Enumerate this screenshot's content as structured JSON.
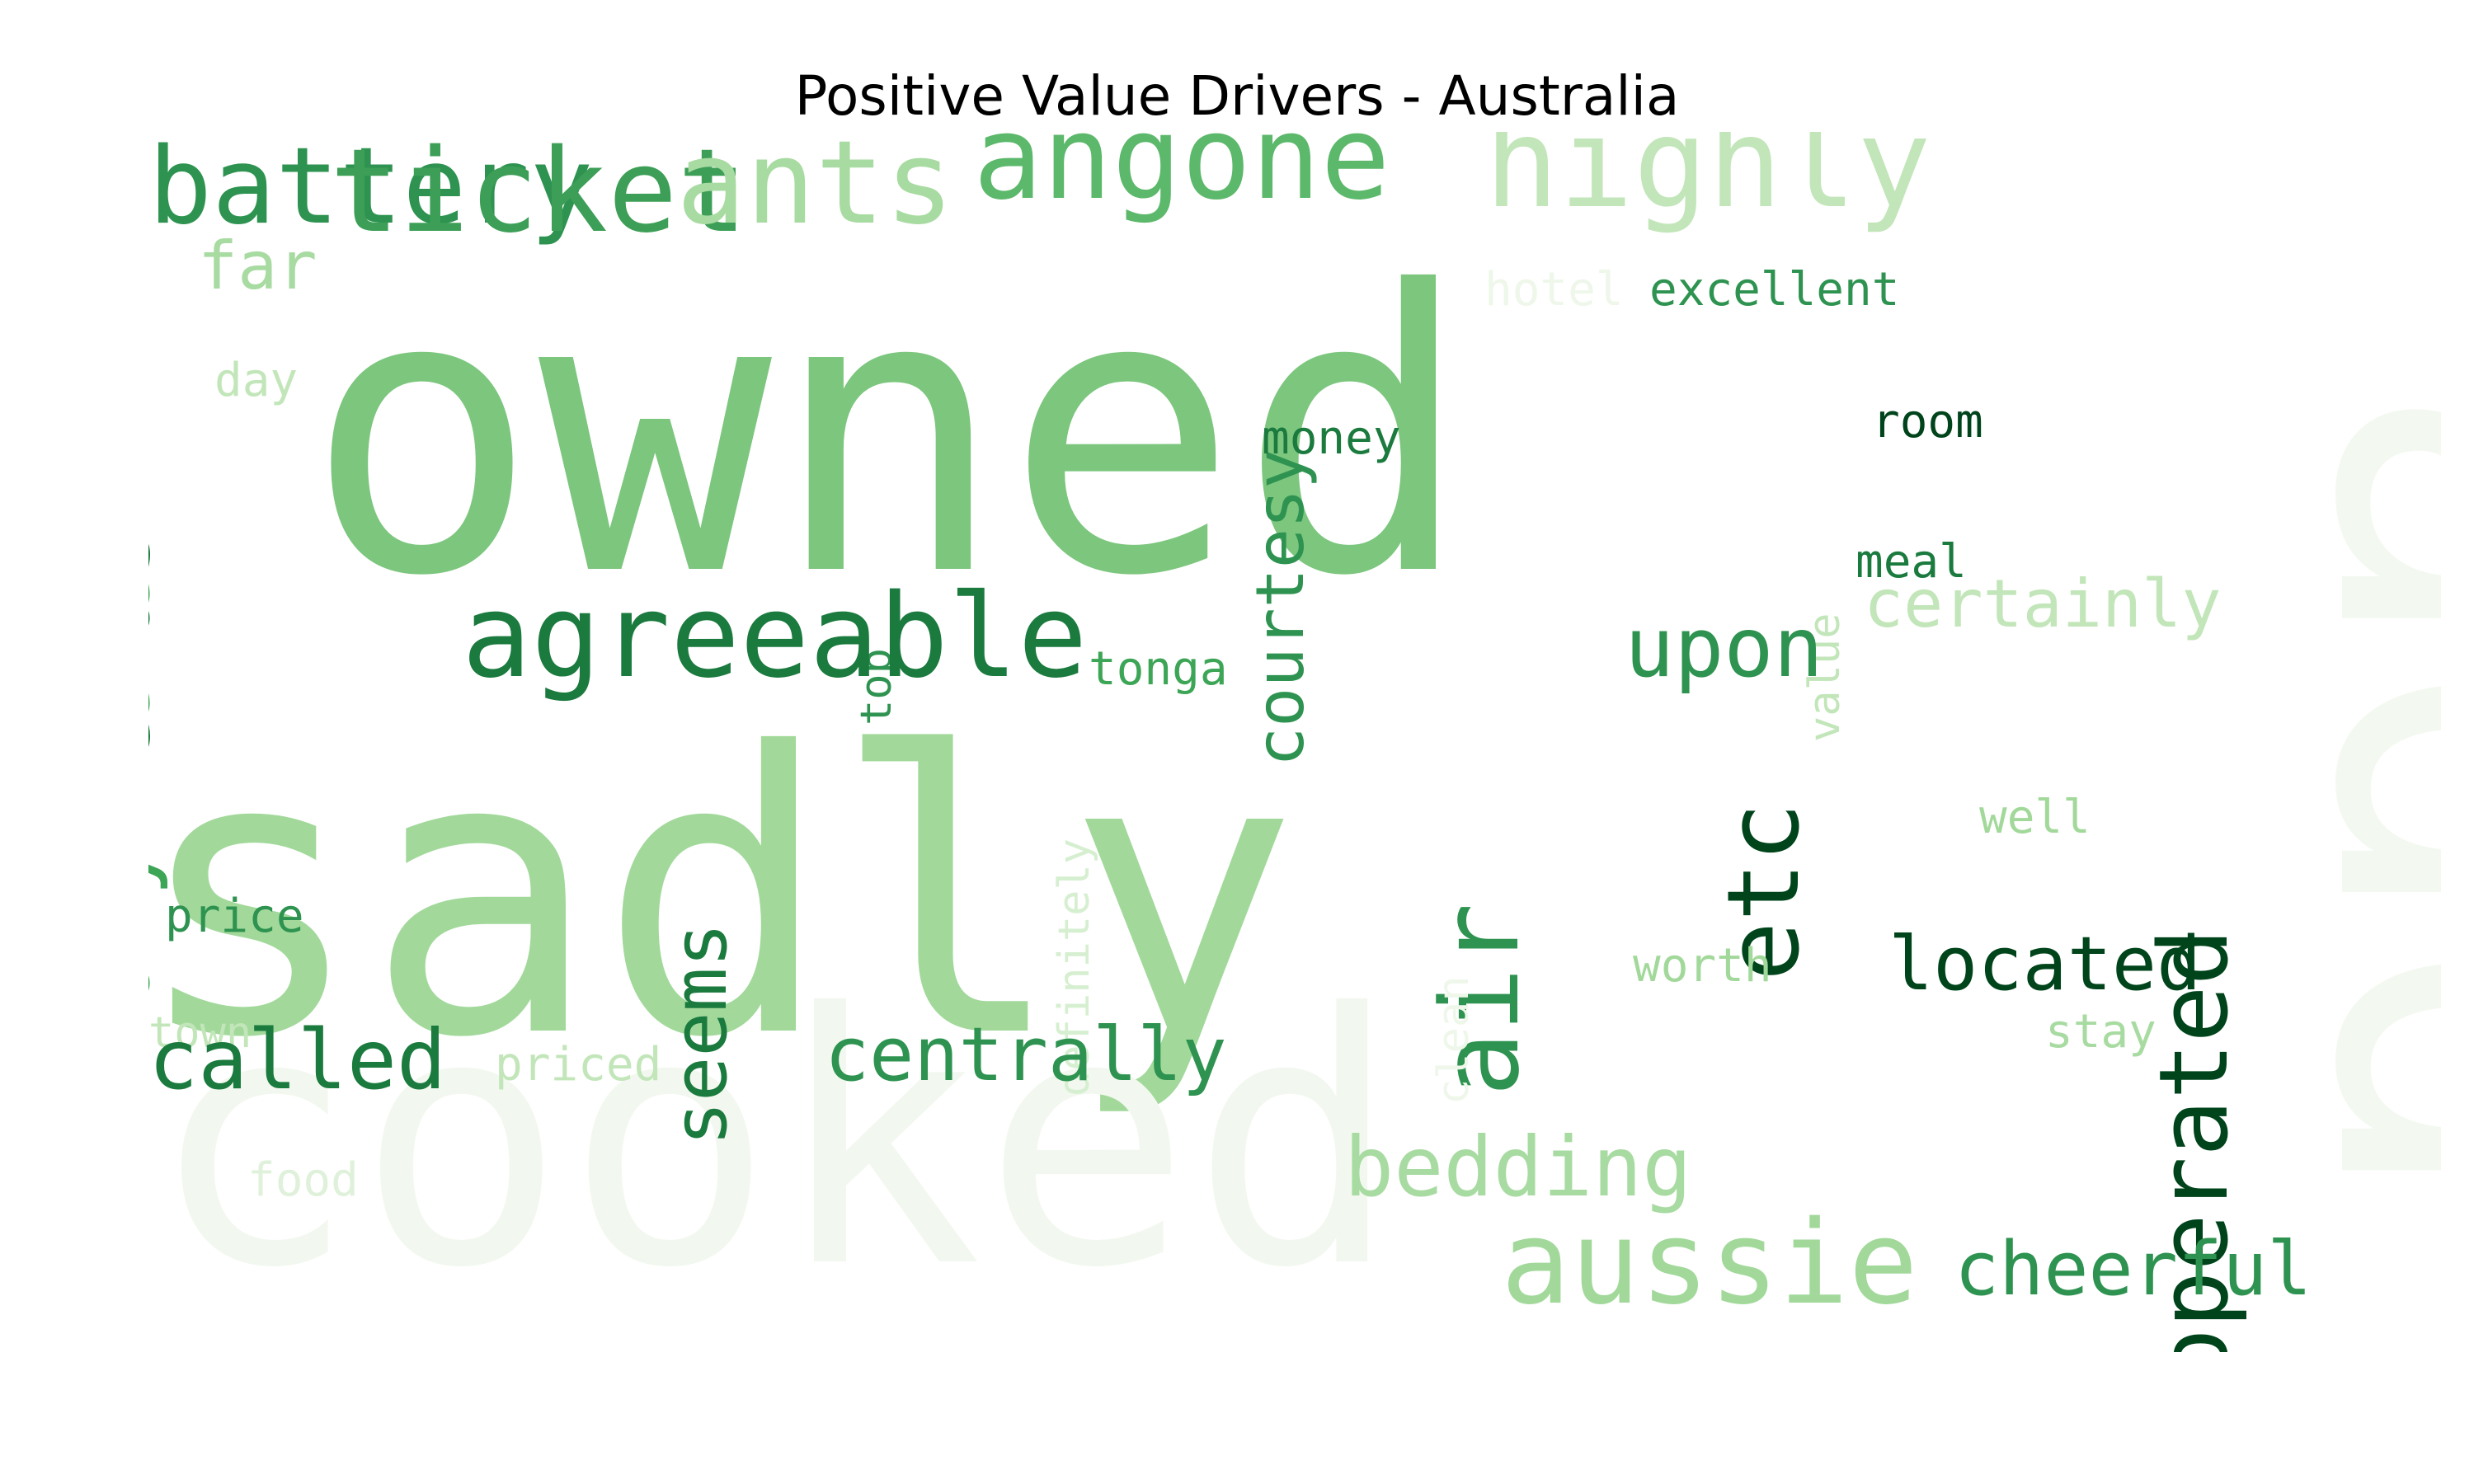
{
  "title": "Positive Value Drivers - Australia",
  "palette": {
    "darkest": "#00441b",
    "dark": "#1b7a3e",
    "mid_dark": "#2e9350",
    "mid": "#5cb86b",
    "light": "#7cc67e",
    "lighter": "#a2d99b",
    "lightest": "#c6e9bf",
    "faint": "#f0f8ed"
  },
  "words": [
    {
      "text": "owned",
      "color": "#7cc67e"
    },
    {
      "text": "sadly",
      "color": "#a2d99b"
    },
    {
      "text": "cooked",
      "color": "#f2f8ef"
    },
    {
      "text": "add",
      "color": "#f3f9f0"
    },
    {
      "text": "battery",
      "color": "#2e9350"
    },
    {
      "text": "ticket",
      "color": "#3d9f57"
    },
    {
      "text": "ants",
      "color": "#a8dba1"
    },
    {
      "text": "angone",
      "color": "#5cb86b"
    },
    {
      "text": "highly",
      "color": "#c2e6b9"
    },
    {
      "text": "far",
      "color": "#a8dba1"
    },
    {
      "text": "hotel",
      "color": "#eef7ea"
    },
    {
      "text": "excellent",
      "color": "#2e9350"
    },
    {
      "text": "day",
      "color": "#c2e6b9"
    },
    {
      "text": "friends",
      "color": "#1b7a3e"
    },
    {
      "text": "anywhere",
      "color": "#3da556"
    },
    {
      "text": "courtesy",
      "color": "#2e9350"
    },
    {
      "text": "money",
      "color": "#1b7a3e"
    },
    {
      "text": "room",
      "color": "#00441b"
    },
    {
      "text": "top",
      "color": "#2e9350"
    },
    {
      "text": "value",
      "color": "#c2e6b9"
    },
    {
      "text": "agreeable",
      "color": "#1b7a3e"
    },
    {
      "text": "meal",
      "color": "#1b7a3e"
    },
    {
      "text": "certainly",
      "color": "#c2e6b9"
    },
    {
      "text": "upon",
      "color": "#2e9350"
    },
    {
      "text": "tonga",
      "color": "#3da556"
    },
    {
      "text": "etc",
      "color": "#00441b"
    },
    {
      "text": "definitely",
      "color": "#d6efd0"
    },
    {
      "text": "air",
      "color": "#2e9350"
    },
    {
      "text": "well",
      "color": "#a2d99b"
    },
    {
      "text": "price",
      "color": "#2e9350"
    },
    {
      "text": "seems",
      "color": "#1b7a3e"
    },
    {
      "text": "clean",
      "color": "#eef7ea"
    },
    {
      "text": "operated",
      "color": "#00441b"
    },
    {
      "text": "worth",
      "color": "#a2d99b"
    },
    {
      "text": "located",
      "color": "#00441b"
    },
    {
      "text": "town",
      "color": "#c2e6b9"
    },
    {
      "text": "called",
      "color": "#1b7a3e"
    },
    {
      "text": "priced",
      "color": "#c2e6b9"
    },
    {
      "text": "centrally",
      "color": "#2e9350"
    },
    {
      "text": "stay",
      "color": "#a8dba1"
    },
    {
      "text": "food",
      "color": "#dff1da"
    },
    {
      "text": "bedding",
      "color": "#a8dba1"
    },
    {
      "text": "aussie",
      "color": "#a2d99b"
    },
    {
      "text": "cheerful",
      "color": "#2e9350"
    }
  ]
}
